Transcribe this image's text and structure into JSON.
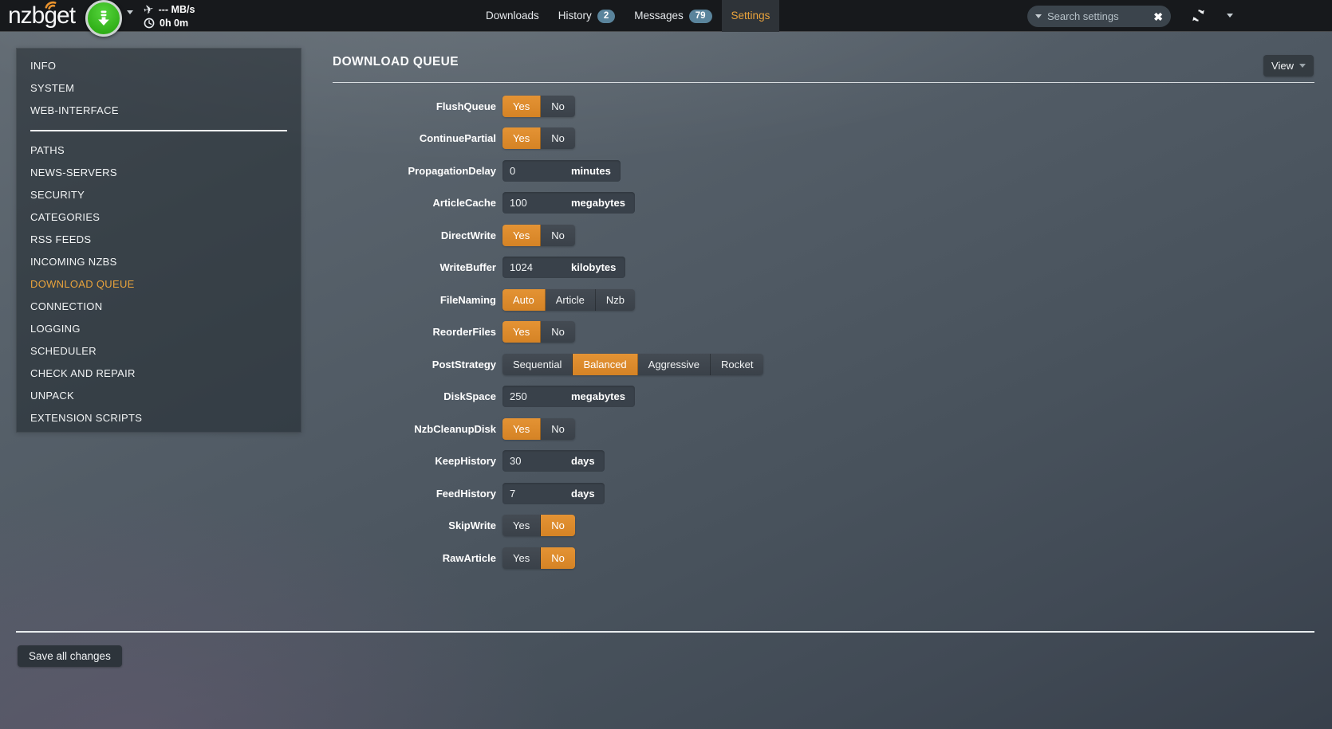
{
  "navbar": {
    "logo_text": "nzbget",
    "speed": "--- MB/s",
    "uptime": "0h 0m",
    "tabs": [
      {
        "label": "Downloads",
        "badge": null,
        "active": false
      },
      {
        "label": "History",
        "badge": "2",
        "active": false
      },
      {
        "label": "Messages",
        "badge": "79",
        "active": false
      },
      {
        "label": "Settings",
        "badge": null,
        "active": true
      }
    ],
    "search": {
      "placeholder": "Search settings",
      "value": "",
      "clear_glyph": "✖"
    }
  },
  "sidebar": {
    "active_item": "DOWNLOAD QUEUE",
    "sections": [
      {
        "items": [
          "INFO",
          "SYSTEM",
          "WEB-INTERFACE"
        ]
      },
      {
        "items": [
          "PATHS",
          "NEWS-SERVERS",
          "SECURITY",
          "CATEGORIES",
          "RSS FEEDS",
          "INCOMING NZBS",
          "DOWNLOAD QUEUE",
          "CONNECTION",
          "LOGGING",
          "SCHEDULER",
          "CHECK AND REPAIR",
          "UNPACK",
          "EXTENSION SCRIPTS"
        ]
      }
    ]
  },
  "main": {
    "title": "DOWNLOAD QUEUE",
    "view_button": "View",
    "settings": [
      {
        "label": "FlushQueue",
        "type": "toggle",
        "options": [
          "Yes",
          "No"
        ],
        "selected": "Yes"
      },
      {
        "label": "ContinuePartial",
        "type": "toggle",
        "options": [
          "Yes",
          "No"
        ],
        "selected": "Yes"
      },
      {
        "label": "PropagationDelay",
        "type": "input",
        "value": "0",
        "unit": "minutes"
      },
      {
        "label": "ArticleCache",
        "type": "input",
        "value": "100",
        "unit": "megabytes"
      },
      {
        "label": "DirectWrite",
        "type": "toggle",
        "options": [
          "Yes",
          "No"
        ],
        "selected": "Yes"
      },
      {
        "label": "WriteBuffer",
        "type": "input",
        "value": "1024",
        "unit": "kilobytes"
      },
      {
        "label": "FileNaming",
        "type": "toggle",
        "options": [
          "Auto",
          "Article",
          "Nzb"
        ],
        "selected": "Auto"
      },
      {
        "label": "ReorderFiles",
        "type": "toggle",
        "options": [
          "Yes",
          "No"
        ],
        "selected": "Yes"
      },
      {
        "label": "PostStrategy",
        "type": "toggle",
        "options": [
          "Sequential",
          "Balanced",
          "Aggressive",
          "Rocket"
        ],
        "selected": "Balanced"
      },
      {
        "label": "DiskSpace",
        "type": "input",
        "value": "250",
        "unit": "megabytes"
      },
      {
        "label": "NzbCleanupDisk",
        "type": "toggle",
        "options": [
          "Yes",
          "No"
        ],
        "selected": "Yes"
      },
      {
        "label": "KeepHistory",
        "type": "input",
        "value": "30",
        "unit": "days"
      },
      {
        "label": "FeedHistory",
        "type": "input",
        "value": "7",
        "unit": "days"
      },
      {
        "label": "SkipWrite",
        "type": "toggle",
        "options": [
          "Yes",
          "No"
        ],
        "selected": "No"
      },
      {
        "label": "RawArticle",
        "type": "toggle",
        "options": [
          "Yes",
          "No"
        ],
        "selected": "No"
      }
    ]
  },
  "footer": {
    "save_button": "Save all changes"
  },
  "colors": {
    "accent_orange": "#dd8a2a",
    "active_text_orange": "#e9a33c",
    "badge_blue": "#5a849c",
    "logo_green": "#2fae17",
    "navbar_bg": "#17191c"
  }
}
